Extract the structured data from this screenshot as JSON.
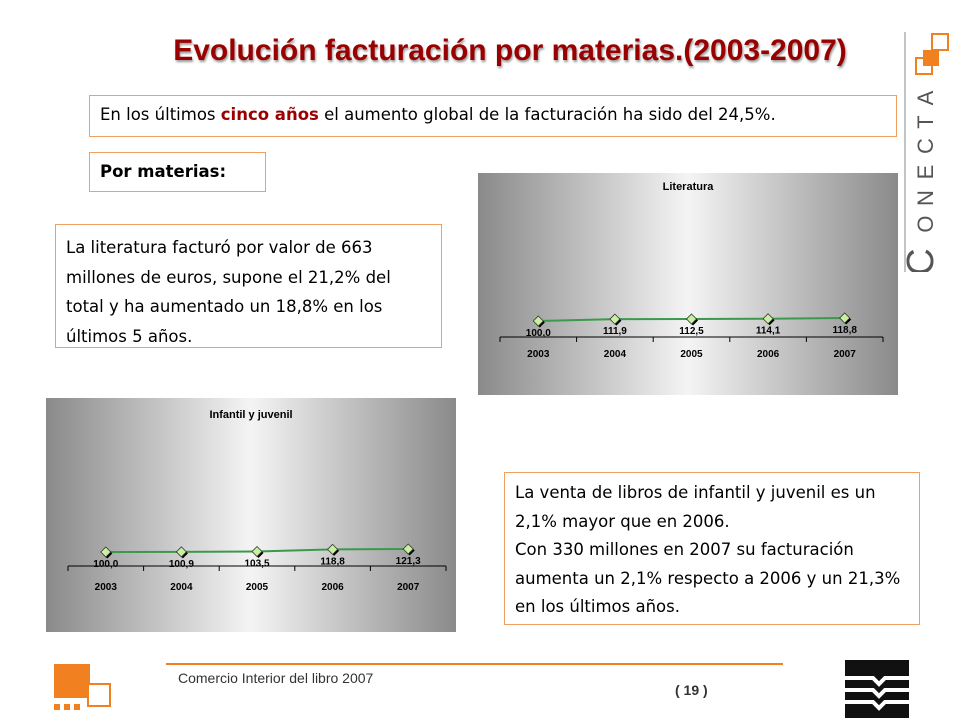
{
  "title": "Evolución facturación por materias.(2003-2007)",
  "intro": {
    "before": "En los últimos ",
    "bold": "cinco años",
    "after": " el aumento global de la facturación ha sido del 24,5%."
  },
  "section_label": "Por materias:",
  "literatura_text": "La literatura facturó por valor de 663 millones de euros, supone el 21,2% del total y ha aumentado un 18,8% en los últimos 5 años.",
  "infantil_text": {
    "line1": "La venta de libros de infantil y juvenil es un 2,1% mayor que en 2006.",
    "line2": "Con 330 millones en 2007 su facturación aumenta un 2,1% respecto a 2006 y un 21,3% en los últimos años."
  },
  "chart_data": [
    {
      "type": "line",
      "title": "Literatura",
      "categories": [
        "2003",
        "2004",
        "2005",
        "2006",
        "2007"
      ],
      "values": [
        100.0,
        111.9,
        112.5,
        114.1,
        118.8
      ],
      "data_labels": [
        "100,0",
        "111,9",
        "112,5",
        "114,1",
        "118,8"
      ],
      "ylim": [
        0,
        500
      ],
      "colors": {
        "line": "#3a9a4a",
        "marker": "#c8f0a0"
      }
    },
    {
      "type": "line",
      "title": "Infantil y juvenil",
      "categories": [
        "2003",
        "2004",
        "2005",
        "2006",
        "2007"
      ],
      "values": [
        100.0,
        100.9,
        103.5,
        118.8,
        121.3
      ],
      "data_labels": [
        "100,0",
        "100,9",
        "103,5",
        "118,8",
        "121,3"
      ],
      "ylim": [
        0,
        500
      ],
      "colors": {
        "line": "#3a9a4a",
        "marker": "#c8f0a0"
      }
    }
  ],
  "brand": {
    "letters": [
      "C",
      "O",
      "N",
      "E",
      "C",
      "T",
      "A"
    ]
  },
  "footer": {
    "text": "Comercio Interior del libro 2007",
    "page": "( 19 )"
  },
  "colors": {
    "accent": "#990000",
    "orange": "#f08020",
    "box_border": "#f0a060"
  }
}
